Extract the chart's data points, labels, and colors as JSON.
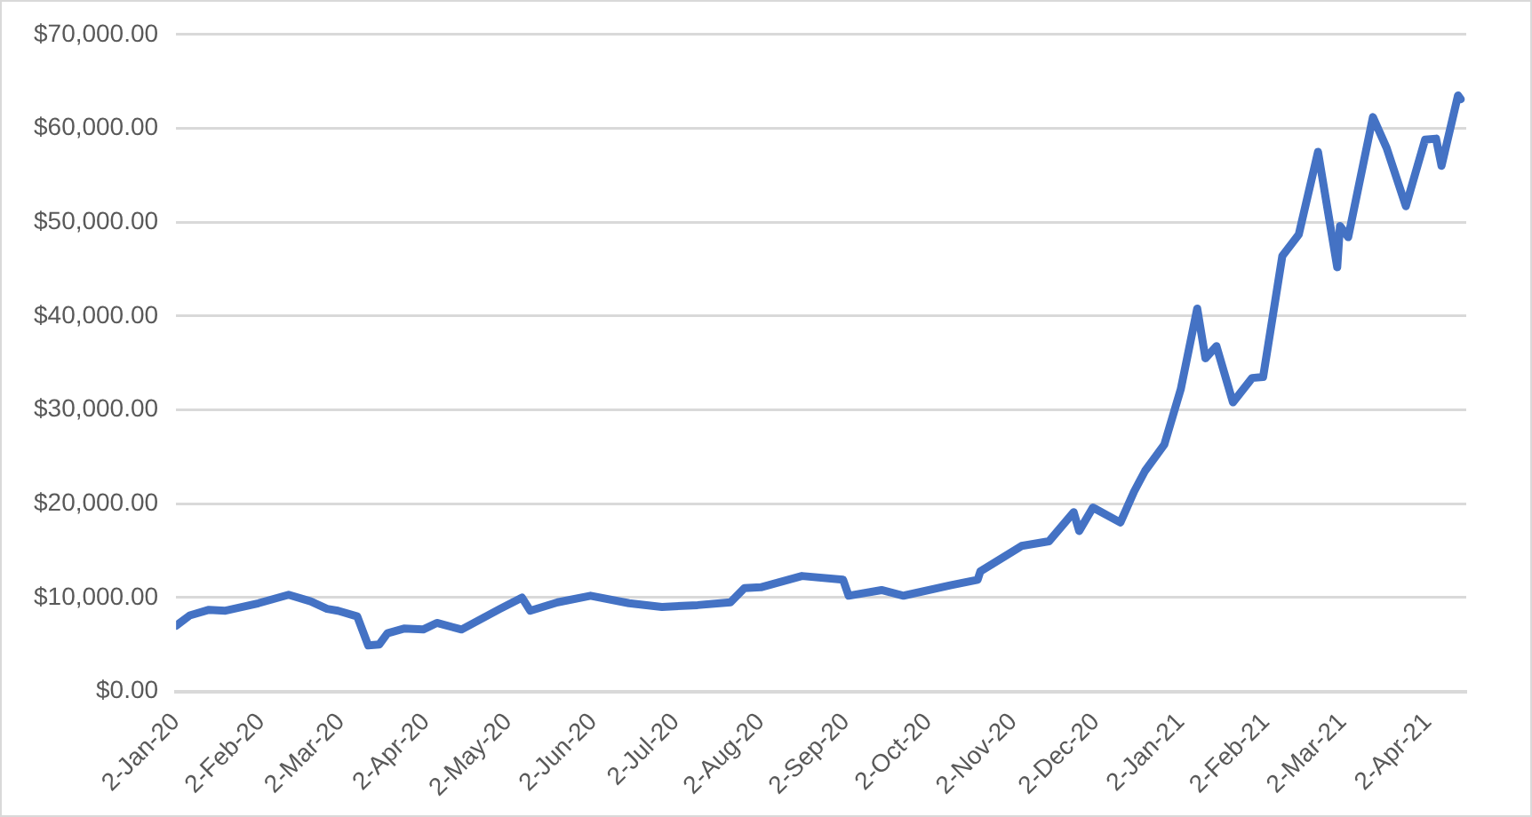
{
  "chart_data": {
    "type": "line",
    "x": [
      "2020-01-02",
      "2020-01-07",
      "2020-01-14",
      "2020-01-20",
      "2020-02-01",
      "2020-02-12",
      "2020-02-20",
      "2020-02-26",
      "2020-03-01",
      "2020-03-08",
      "2020-03-12",
      "2020-03-16",
      "2020-03-19",
      "2020-03-25",
      "2020-04-01",
      "2020-04-06",
      "2020-04-15",
      "2020-04-29",
      "2020-05-07",
      "2020-05-10",
      "2020-05-20",
      "2020-06-01",
      "2020-06-15",
      "2020-06-27",
      "2020-07-10",
      "2020-07-22",
      "2020-07-27",
      "2020-08-02",
      "2020-08-17",
      "2020-09-01",
      "2020-09-03",
      "2020-09-15",
      "2020-09-23",
      "2020-10-10",
      "2020-10-20",
      "2020-10-21",
      "2020-11-05",
      "2020-11-15",
      "2020-11-24",
      "2020-11-26",
      "2020-12-01",
      "2020-12-11",
      "2020-12-16",
      "2020-12-20",
      "2020-12-27",
      "2021-01-02",
      "2021-01-08",
      "2021-01-11",
      "2021-01-15",
      "2021-01-21",
      "2021-01-28",
      "2021-02-01",
      "2021-02-08",
      "2021-02-14",
      "2021-02-21",
      "2021-02-28",
      "2021-03-01",
      "2021-03-04",
      "2021-03-13",
      "2021-03-18",
      "2021-03-25",
      "2021-04-01",
      "2021-04-05",
      "2021-04-07",
      "2021-04-13",
      "2021-04-14"
    ],
    "series": [
      {
        "color": "#4472c4",
        "values": [
          7000,
          8100,
          8700,
          8600,
          9400,
          10300,
          9600,
          8800,
          8600,
          8000,
          4900,
          5000,
          6200,
          6700,
          6600,
          7300,
          6600,
          8800,
          10000,
          8600,
          9500,
          10200,
          9400,
          9000,
          9200,
          9500,
          11000,
          11100,
          12300,
          11900,
          10200,
          10800,
          10200,
          11300,
          11900,
          12800,
          15500,
          16000,
          19100,
          17100,
          19600,
          18000,
          21300,
          23500,
          26300,
          32200,
          40800,
          35500,
          36800,
          30800,
          33400,
          33500,
          46400,
          48700,
          57500,
          45200,
          49600,
          48400,
          61200,
          57900,
          51700,
          58800,
          58900,
          56000,
          63500,
          63100
        ]
      }
    ],
    "xlim": [
      "2020-01-02",
      "2021-04-16"
    ],
    "xticks": [
      {
        "value": "2020-01-02",
        "label": "2-Jan-20"
      },
      {
        "value": "2020-02-02",
        "label": "2-Feb-20"
      },
      {
        "value": "2020-03-02",
        "label": "2-Mar-20"
      },
      {
        "value": "2020-04-02",
        "label": "2-Apr-20"
      },
      {
        "value": "2020-05-02",
        "label": "2-May-20"
      },
      {
        "value": "2020-06-02",
        "label": "2-Jun-20"
      },
      {
        "value": "2020-07-02",
        "label": "2-Jul-20"
      },
      {
        "value": "2020-08-02",
        "label": "2-Aug-20"
      },
      {
        "value": "2020-09-02",
        "label": "2-Sep-20"
      },
      {
        "value": "2020-10-02",
        "label": "2-Oct-20"
      },
      {
        "value": "2020-11-02",
        "label": "2-Nov-20"
      },
      {
        "value": "2020-12-02",
        "label": "2-Dec-20"
      },
      {
        "value": "2021-01-02",
        "label": "2-Jan-21"
      },
      {
        "value": "2021-02-02",
        "label": "2-Feb-21"
      },
      {
        "value": "2021-03-02",
        "label": "2-Mar-21"
      },
      {
        "value": "2021-04-02",
        "label": "2-Apr-21"
      }
    ],
    "ylim": [
      0,
      70000
    ],
    "yticks": [
      {
        "value": 0,
        "label": "$0.00"
      },
      {
        "value": 10000,
        "label": "$10,000.00"
      },
      {
        "value": 20000,
        "label": "$20,000.00"
      },
      {
        "value": 30000,
        "label": "$30,000.00"
      },
      {
        "value": 40000,
        "label": "$40,000.00"
      },
      {
        "value": 50000,
        "label": "$50,000.00"
      },
      {
        "value": 60000,
        "label": "$60,000.00"
      },
      {
        "value": 70000,
        "label": "$70,000.00"
      }
    ],
    "grid": "y",
    "marker": "none",
    "line_style": "solid",
    "legend": false
  }
}
